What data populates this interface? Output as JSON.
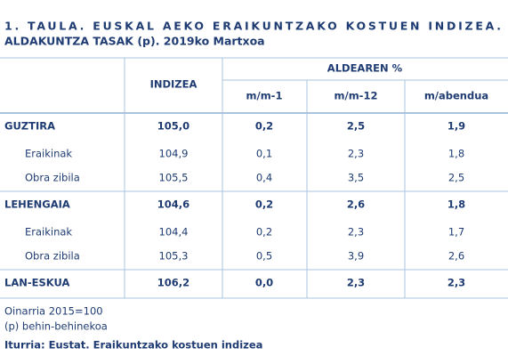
{
  "title": [
    "1. TAULA. EUSKAL AEKO ERAIKUNTZAKO KOSTUEN INDIZEA.",
    "ALDAKUNTZA TASAK (p). 2019ko Martxoa"
  ],
  "table": {
    "header": {
      "index": "INDIZEA",
      "group": "ALDEAREN %",
      "columns": [
        "m/m-1",
        "m/m-12",
        "m/abendua"
      ]
    },
    "groups": [
      {
        "row": [
          "GUZTIRA",
          "105,0",
          "0,2",
          "2,5",
          "1,9"
        ],
        "children": [
          [
            "Eraikinak",
            "104,9",
            "0,1",
            "2,3",
            "1,8"
          ],
          [
            "Obra zibila",
            "105,5",
            "0,4",
            "3,5",
            "2,5"
          ]
        ]
      },
      {
        "row": [
          "LEHENGAIA",
          "104,6",
          "0,2",
          "2,6",
          "1,8"
        ],
        "children": [
          [
            "Eraikinak",
            "104,4",
            "0,2",
            "2,3",
            "1,7"
          ],
          [
            "Obra zibila",
            "105,3",
            "0,5",
            "3,9",
            "2,6"
          ]
        ]
      },
      {
        "row": [
          "LAN-ESKUA",
          "106,2",
          "0,0",
          "2,3",
          "2,3"
        ],
        "children": []
      }
    ]
  },
  "notes": [
    "Oinarria 2015=100",
    "(p) behin-behinekoa"
  ],
  "source": "Iturria: Eustat. Eraikuntzako kostuen indizea"
}
